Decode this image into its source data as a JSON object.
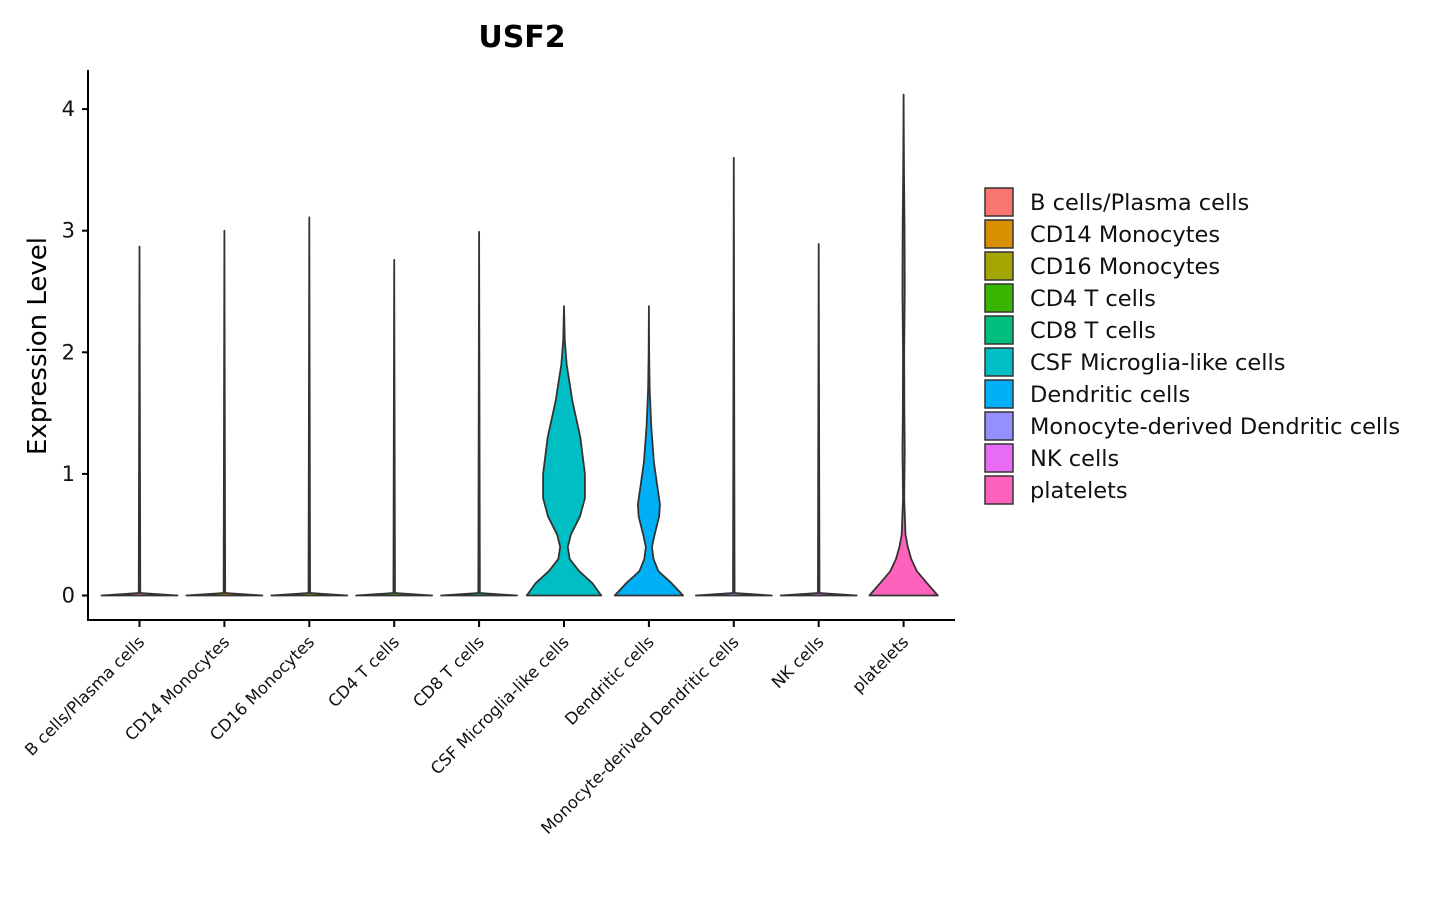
{
  "chart_data": {
    "type": "violin",
    "title": "USF2",
    "xlabel": "",
    "ylabel": "Expression Level",
    "ylim": [
      -0.2,
      4.3
    ],
    "yticks": [
      0,
      1,
      2,
      3,
      4
    ],
    "grid": false,
    "legend_position": "right",
    "categories": [
      "B cells/Plasma cells",
      "CD14 Monocytes",
      "CD16 Monocytes",
      "CD4 T cells",
      "CD8 T cells",
      "CSF Microglia-like cells",
      "Dendritic cells",
      "Monocyte-derived Dendritic cells",
      "NK cells",
      "platelets"
    ],
    "colors": [
      "#F8766D",
      "#D89000",
      "#A3A500",
      "#39B600",
      "#00BF7D",
      "#00BFC4",
      "#00B0F6",
      "#9590FF",
      "#E76BF3",
      "#FF62BC"
    ],
    "max_values": [
      2.87,
      3.0,
      3.11,
      2.76,
      2.99,
      2.38,
      2.38,
      3.6,
      2.89,
      4.12
    ],
    "density_profiles": [
      [
        [
          0,
          1.0
        ],
        [
          0.02,
          0.02
        ],
        [
          2.87,
          0.0
        ]
      ],
      [
        [
          0,
          1.0
        ],
        [
          0.02,
          0.02
        ],
        [
          3.0,
          0.0
        ]
      ],
      [
        [
          0,
          1.0
        ],
        [
          0.02,
          0.02
        ],
        [
          3.11,
          0.0
        ]
      ],
      [
        [
          0,
          1.0
        ],
        [
          0.02,
          0.02
        ],
        [
          2.76,
          0.0
        ]
      ],
      [
        [
          0,
          1.0
        ],
        [
          0.02,
          0.02
        ],
        [
          2.99,
          0.0
        ]
      ],
      [
        [
          0,
          0.98
        ],
        [
          0.1,
          0.75
        ],
        [
          0.2,
          0.4
        ],
        [
          0.3,
          0.15
        ],
        [
          0.4,
          0.1
        ],
        [
          0.5,
          0.18
        ],
        [
          0.65,
          0.42
        ],
        [
          0.8,
          0.55
        ],
        [
          1.0,
          0.55
        ],
        [
          1.3,
          0.43
        ],
        [
          1.6,
          0.22
        ],
        [
          1.9,
          0.07
        ],
        [
          2.1,
          0.02
        ],
        [
          2.38,
          0.0
        ]
      ],
      [
        [
          0,
          0.9
        ],
        [
          0.1,
          0.6
        ],
        [
          0.2,
          0.25
        ],
        [
          0.3,
          0.12
        ],
        [
          0.4,
          0.08
        ],
        [
          0.5,
          0.15
        ],
        [
          0.65,
          0.27
        ],
        [
          0.75,
          0.29
        ],
        [
          0.9,
          0.22
        ],
        [
          1.1,
          0.13
        ],
        [
          1.4,
          0.06
        ],
        [
          1.7,
          0.02
        ],
        [
          2.0,
          0.006
        ],
        [
          2.38,
          0.0
        ]
      ],
      [
        [
          0,
          1.0
        ],
        [
          0.02,
          0.02
        ],
        [
          3.6,
          0.0
        ]
      ],
      [
        [
          0,
          1.0
        ],
        [
          0.02,
          0.02
        ],
        [
          2.89,
          0.0
        ]
      ],
      [
        [
          0,
          0.9
        ],
        [
          0.1,
          0.62
        ],
        [
          0.2,
          0.35
        ],
        [
          0.3,
          0.2
        ],
        [
          0.4,
          0.11
        ],
        [
          0.5,
          0.05
        ],
        [
          0.8,
          0.015
        ],
        [
          1.2,
          0.03
        ],
        [
          1.5,
          0.02
        ],
        [
          2.0,
          0.015
        ],
        [
          2.5,
          0.03
        ],
        [
          3.0,
          0.025
        ],
        [
          3.5,
          0.01
        ],
        [
          4.12,
          0.0
        ]
      ]
    ]
  }
}
